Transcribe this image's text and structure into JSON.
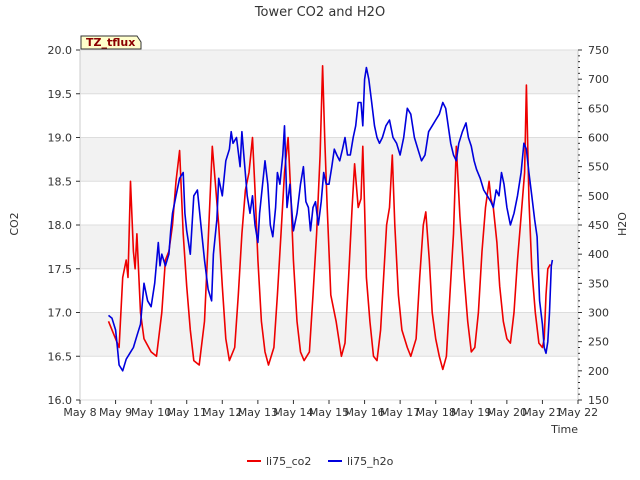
{
  "chart_data": {
    "type": "line",
    "title": "Tower CO2 and H2O",
    "xlabel": "Time",
    "ylabel_left": "CO2",
    "ylabel_right": "H2O",
    "badge": "TZ_tflux",
    "x_ticks": [
      "May 8",
      "May 9",
      "May 10",
      "May 11",
      "May 12",
      "May 13",
      "May 14",
      "May 15",
      "May 16",
      "May 17",
      "May 18",
      "May 19",
      "May 20",
      "May 21",
      "May 22"
    ],
    "y_left_ticks": [
      "16.0",
      "16.5",
      "17.0",
      "17.5",
      "18.0",
      "18.5",
      "19.0",
      "19.5",
      "20.0"
    ],
    "y_right_ticks": [
      "150",
      "200",
      "250",
      "300",
      "350",
      "400",
      "450",
      "500",
      "550",
      "600",
      "650",
      "700",
      "750"
    ],
    "ylim_left": [
      16.0,
      20.0
    ],
    "ylim_right": [
      150,
      750
    ],
    "xlim_days": [
      8,
      22
    ],
    "grid": "horizontal bands",
    "legend_position": "bottom-center",
    "colors": {
      "co2": "#ee0000",
      "h2o": "#0000dd",
      "band": "#f2f2f2",
      "badge_bg": "#ffffcc"
    },
    "series": [
      {
        "name": "li75_co2",
        "axis": "left",
        "points": [
          [
            8.8,
            16.9
          ],
          [
            9.0,
            16.7
          ],
          [
            9.1,
            16.6
          ],
          [
            9.2,
            17.4
          ],
          [
            9.3,
            17.6
          ],
          [
            9.35,
            17.4
          ],
          [
            9.42,
            18.5
          ],
          [
            9.5,
            17.7
          ],
          [
            9.55,
            17.5
          ],
          [
            9.6,
            17.9
          ],
          [
            9.7,
            17.0
          ],
          [
            9.8,
            16.7
          ],
          [
            10.0,
            16.55
          ],
          [
            10.15,
            16.5
          ],
          [
            10.3,
            17.0
          ],
          [
            10.4,
            17.6
          ],
          [
            10.5,
            17.7
          ],
          [
            10.6,
            18.0
          ],
          [
            10.7,
            18.5
          ],
          [
            10.8,
            18.85
          ],
          [
            10.9,
            17.9
          ],
          [
            11.0,
            17.3
          ],
          [
            11.1,
            16.8
          ],
          [
            11.2,
            16.45
          ],
          [
            11.35,
            16.4
          ],
          [
            11.5,
            16.9
          ],
          [
            11.6,
            17.8
          ],
          [
            11.72,
            18.9
          ],
          [
            11.8,
            18.5
          ],
          [
            11.9,
            18.0
          ],
          [
            12.0,
            17.3
          ],
          [
            12.1,
            16.7
          ],
          [
            12.2,
            16.45
          ],
          [
            12.35,
            16.6
          ],
          [
            12.45,
            17.2
          ],
          [
            12.55,
            17.9
          ],
          [
            12.65,
            18.4
          ],
          [
            12.75,
            18.6
          ],
          [
            12.85,
            19.0
          ],
          [
            12.92,
            18.4
          ],
          [
            13.0,
            17.6
          ],
          [
            13.1,
            16.9
          ],
          [
            13.2,
            16.55
          ],
          [
            13.3,
            16.4
          ],
          [
            13.45,
            16.6
          ],
          [
            13.55,
            17.2
          ],
          [
            13.65,
            17.9
          ],
          [
            13.75,
            18.6
          ],
          [
            13.85,
            19.0
          ],
          [
            13.92,
            18.4
          ],
          [
            14.0,
            17.6
          ],
          [
            14.1,
            16.9
          ],
          [
            14.2,
            16.55
          ],
          [
            14.3,
            16.45
          ],
          [
            14.45,
            16.55
          ],
          [
            14.55,
            17.2
          ],
          [
            14.65,
            17.9
          ],
          [
            14.75,
            18.8
          ],
          [
            14.82,
            19.82
          ],
          [
            14.88,
            19.0
          ],
          [
            14.95,
            18.2
          ],
          [
            15.05,
            17.2
          ],
          [
            15.2,
            16.9
          ],
          [
            15.35,
            16.5
          ],
          [
            15.45,
            16.65
          ],
          [
            15.55,
            17.4
          ],
          [
            15.65,
            18.2
          ],
          [
            15.72,
            18.7
          ],
          [
            15.82,
            18.2
          ],
          [
            15.9,
            18.3
          ],
          [
            15.95,
            18.9
          ],
          [
            16.0,
            18.2
          ],
          [
            16.05,
            17.4
          ],
          [
            16.15,
            16.9
          ],
          [
            16.25,
            16.5
          ],
          [
            16.35,
            16.45
          ],
          [
            16.45,
            16.8
          ],
          [
            16.55,
            17.5
          ],
          [
            16.62,
            18.0
          ],
          [
            16.7,
            18.2
          ],
          [
            16.78,
            18.8
          ],
          [
            16.85,
            18.0
          ],
          [
            16.95,
            17.2
          ],
          [
            17.05,
            16.8
          ],
          [
            17.2,
            16.6
          ],
          [
            17.3,
            16.5
          ],
          [
            17.45,
            16.7
          ],
          [
            17.55,
            17.4
          ],
          [
            17.65,
            18.0
          ],
          [
            17.72,
            18.15
          ],
          [
            17.82,
            17.6
          ],
          [
            17.9,
            17.0
          ],
          [
            18.0,
            16.7
          ],
          [
            18.1,
            16.5
          ],
          [
            18.2,
            16.35
          ],
          [
            18.3,
            16.5
          ],
          [
            18.4,
            17.2
          ],
          [
            18.5,
            17.9
          ],
          [
            18.58,
            18.9
          ],
          [
            18.68,
            18.1
          ],
          [
            18.8,
            17.4
          ],
          [
            18.9,
            16.9
          ],
          [
            19.0,
            16.55
          ],
          [
            19.1,
            16.6
          ],
          [
            19.2,
            17.0
          ],
          [
            19.3,
            17.7
          ],
          [
            19.4,
            18.2
          ],
          [
            19.5,
            18.5
          ],
          [
            19.55,
            18.3
          ],
          [
            19.62,
            18.2
          ],
          [
            19.72,
            17.8
          ],
          [
            19.8,
            17.3
          ],
          [
            19.9,
            16.9
          ],
          [
            20.0,
            16.7
          ],
          [
            20.1,
            16.65
          ],
          [
            20.2,
            17.0
          ],
          [
            20.3,
            17.6
          ],
          [
            20.4,
            18.1
          ],
          [
            20.5,
            18.6
          ],
          [
            20.55,
            19.6
          ],
          [
            20.62,
            18.3
          ],
          [
            20.7,
            17.5
          ],
          [
            20.8,
            17.0
          ],
          [
            20.9,
            16.65
          ],
          [
            21.0,
            16.6
          ],
          [
            21.05,
            16.7
          ],
          [
            21.1,
            17.2
          ],
          [
            21.15,
            17.5
          ],
          [
            21.22,
            17.55
          ]
        ]
      },
      {
        "name": "li75_h2o",
        "axis": "right",
        "points": [
          [
            8.8,
            295
          ],
          [
            8.9,
            290
          ],
          [
            9.0,
            270
          ],
          [
            9.05,
            240
          ],
          [
            9.1,
            210
          ],
          [
            9.2,
            200
          ],
          [
            9.3,
            220
          ],
          [
            9.4,
            230
          ],
          [
            9.5,
            240
          ],
          [
            9.6,
            260
          ],
          [
            9.7,
            280
          ],
          [
            9.8,
            350
          ],
          [
            9.9,
            320
          ],
          [
            10.0,
            310
          ],
          [
            10.1,
            350
          ],
          [
            10.2,
            420
          ],
          [
            10.25,
            380
          ],
          [
            10.3,
            400
          ],
          [
            10.4,
            380
          ],
          [
            10.5,
            400
          ],
          [
            10.55,
            440
          ],
          [
            10.6,
            470
          ],
          [
            10.7,
            500
          ],
          [
            10.8,
            530
          ],
          [
            10.9,
            540
          ],
          [
            10.95,
            470
          ],
          [
            11.0,
            440
          ],
          [
            11.1,
            400
          ],
          [
            11.2,
            500
          ],
          [
            11.3,
            510
          ],
          [
            11.4,
            450
          ],
          [
            11.5,
            390
          ],
          [
            11.6,
            340
          ],
          [
            11.7,
            320
          ],
          [
            11.75,
            400
          ],
          [
            11.85,
            460
          ],
          [
            11.9,
            530
          ],
          [
            12.0,
            500
          ],
          [
            12.1,
            560
          ],
          [
            12.2,
            580
          ],
          [
            12.25,
            610
          ],
          [
            12.3,
            590
          ],
          [
            12.4,
            600
          ],
          [
            12.5,
            550
          ],
          [
            12.55,
            610
          ],
          [
            12.62,
            560
          ],
          [
            12.7,
            500
          ],
          [
            12.78,
            470
          ],
          [
            12.85,
            500
          ],
          [
            12.92,
            450
          ],
          [
            13.0,
            420
          ],
          [
            13.05,
            470
          ],
          [
            13.1,
            500
          ],
          [
            13.2,
            560
          ],
          [
            13.28,
            520
          ],
          [
            13.35,
            450
          ],
          [
            13.42,
            430
          ],
          [
            13.5,
            480
          ],
          [
            13.55,
            540
          ],
          [
            13.62,
            520
          ],
          [
            13.7,
            570
          ],
          [
            13.75,
            620
          ],
          [
            13.82,
            480
          ],
          [
            13.9,
            520
          ],
          [
            13.95,
            480
          ],
          [
            14.0,
            440
          ],
          [
            14.1,
            470
          ],
          [
            14.2,
            520
          ],
          [
            14.28,
            550
          ],
          [
            14.35,
            490
          ],
          [
            14.42,
            480
          ],
          [
            14.48,
            440
          ],
          [
            14.55,
            480
          ],
          [
            14.62,
            490
          ],
          [
            14.7,
            450
          ],
          [
            14.78,
            490
          ],
          [
            14.85,
            540
          ],
          [
            14.92,
            520
          ],
          [
            15.0,
            520
          ],
          [
            15.08,
            550
          ],
          [
            15.15,
            580
          ],
          [
            15.22,
            570
          ],
          [
            15.3,
            560
          ],
          [
            15.38,
            580
          ],
          [
            15.45,
            600
          ],
          [
            15.52,
            570
          ],
          [
            15.6,
            570
          ],
          [
            15.68,
            600
          ],
          [
            15.75,
            620
          ],
          [
            15.82,
            660
          ],
          [
            15.9,
            660
          ],
          [
            15.95,
            620
          ],
          [
            16.0,
            700
          ],
          [
            16.05,
            720
          ],
          [
            16.12,
            700
          ],
          [
            16.2,
            660
          ],
          [
            16.28,
            620
          ],
          [
            16.35,
            600
          ],
          [
            16.42,
            590
          ],
          [
            16.5,
            600
          ],
          [
            16.6,
            620
          ],
          [
            16.7,
            630
          ],
          [
            16.8,
            600
          ],
          [
            16.9,
            590
          ],
          [
            17.0,
            570
          ],
          [
            17.1,
            600
          ],
          [
            17.2,
            650
          ],
          [
            17.3,
            640
          ],
          [
            17.4,
            600
          ],
          [
            17.5,
            580
          ],
          [
            17.6,
            560
          ],
          [
            17.7,
            570
          ],
          [
            17.8,
            610
          ],
          [
            17.9,
            620
          ],
          [
            18.0,
            630
          ],
          [
            18.1,
            640
          ],
          [
            18.2,
            660
          ],
          [
            18.28,
            650
          ],
          [
            18.35,
            620
          ],
          [
            18.42,
            590
          ],
          [
            18.5,
            570
          ],
          [
            18.58,
            560
          ],
          [
            18.65,
            590
          ],
          [
            18.75,
            610
          ],
          [
            18.85,
            625
          ],
          [
            18.92,
            600
          ],
          [
            19.0,
            585
          ],
          [
            19.08,
            560
          ],
          [
            19.15,
            545
          ],
          [
            19.25,
            530
          ],
          [
            19.35,
            510
          ],
          [
            19.45,
            500
          ],
          [
            19.55,
            490
          ],
          [
            19.62,
            480
          ],
          [
            19.7,
            510
          ],
          [
            19.78,
            500
          ],
          [
            19.85,
            540
          ],
          [
            19.92,
            520
          ],
          [
            20.0,
            480
          ],
          [
            20.1,
            450
          ],
          [
            20.2,
            470
          ],
          [
            20.3,
            500
          ],
          [
            20.4,
            540
          ],
          [
            20.48,
            590
          ],
          [
            20.55,
            580
          ],
          [
            20.62,
            540
          ],
          [
            20.7,
            500
          ],
          [
            20.78,
            460
          ],
          [
            20.85,
            430
          ],
          [
            20.92,
            320
          ],
          [
            21.0,
            280
          ],
          [
            21.05,
            240
          ],
          [
            21.1,
            230
          ],
          [
            21.15,
            250
          ],
          [
            21.2,
            300
          ],
          [
            21.25,
            380
          ],
          [
            21.28,
            390
          ]
        ]
      }
    ]
  }
}
